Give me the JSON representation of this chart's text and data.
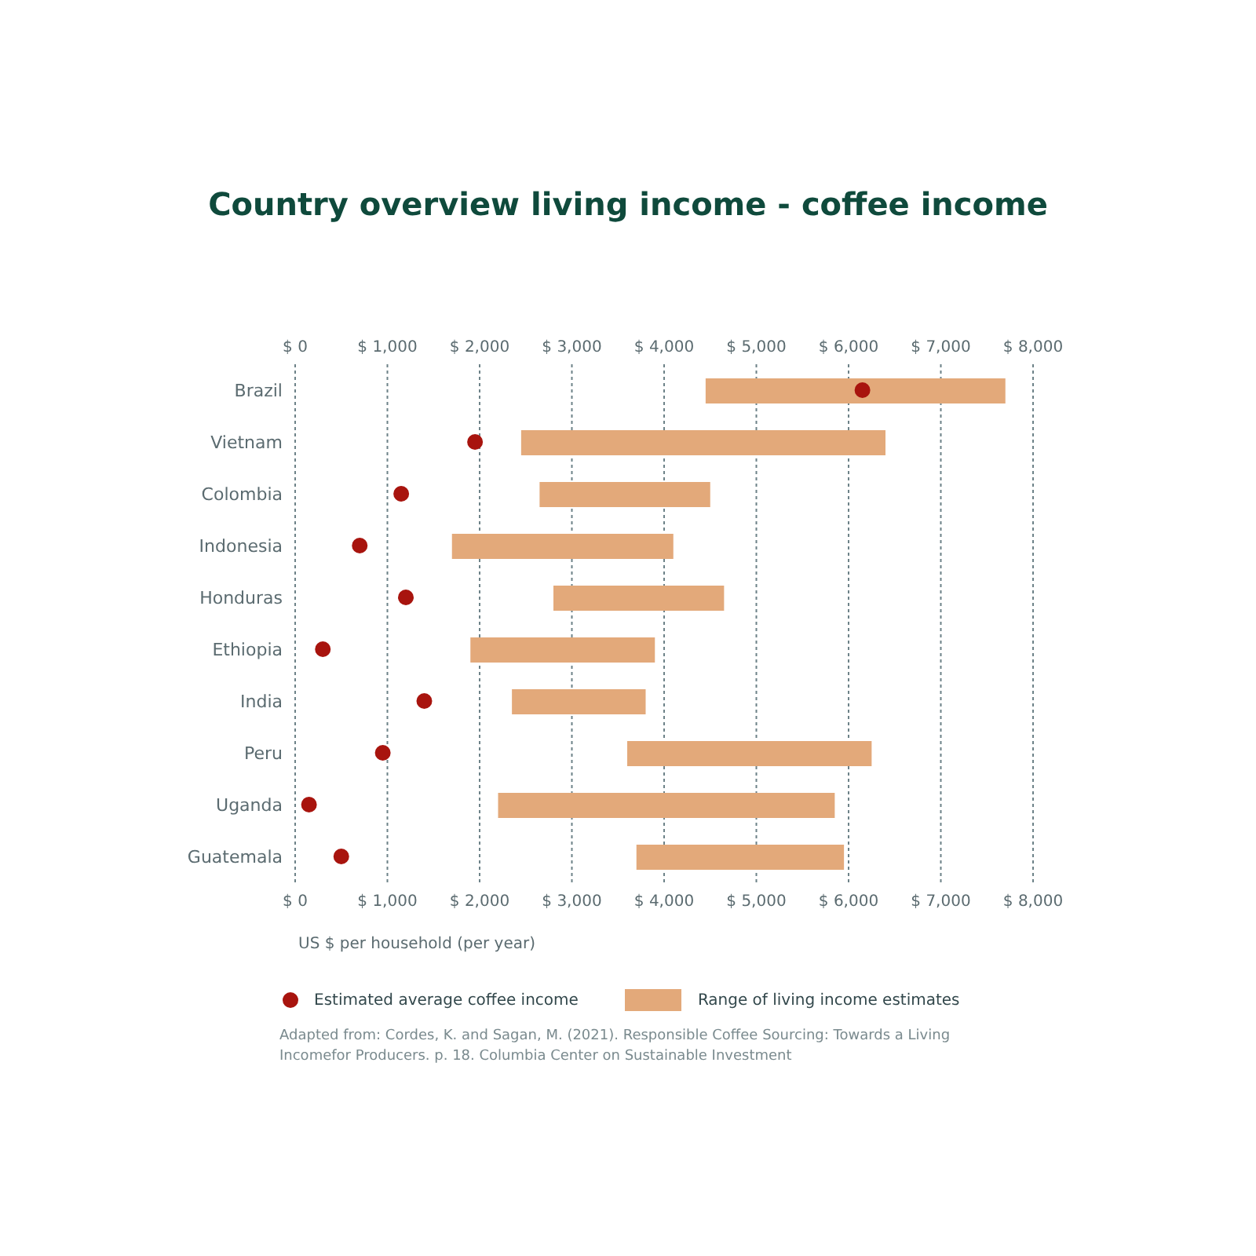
{
  "chart_data": {
    "type": "bar",
    "orientation": "horizontal",
    "title": "Country overview living income - coffee income",
    "xlabel": "US $ per household (per year)",
    "categories": [
      "Brazil",
      "Vietnam",
      "Colombia",
      "Indonesia",
      "Honduras",
      "Ethiopia",
      "India",
      "Peru",
      "Uganda",
      "Guatemala"
    ],
    "series": [
      {
        "type": "scatter",
        "name": "Estimated average coffee income",
        "color": "#a8140e",
        "values": [
          6150,
          1950,
          1150,
          700,
          1200,
          300,
          1400,
          950,
          150,
          500
        ]
      },
      {
        "name": "Range of living income estimates",
        "color": "#e3a97a",
        "base": [
          4450,
          2450,
          2650,
          1700,
          2800,
          1900,
          2350,
          3600,
          2200,
          3700
        ],
        "values": [
          3250,
          3950,
          1850,
          2400,
          1850,
          2000,
          1450,
          2650,
          3650,
          2250
        ]
      }
    ],
    "xlim": [
      0,
      8000
    ],
    "xticks": [
      {
        "value": 0,
        "label": "$ 0"
      },
      {
        "value": 1000,
        "label": "$ 1,000"
      },
      {
        "value": 2000,
        "label": "$ 2,000"
      },
      {
        "value": 3000,
        "label": "$ 3,000"
      },
      {
        "value": 4000,
        "label": "$ 4,000"
      },
      {
        "value": 5000,
        "label": "$ 5,000"
      },
      {
        "value": 6000,
        "label": "$ 6,000"
      },
      {
        "value": 7000,
        "label": "$ 7,000"
      },
      {
        "value": 8000,
        "label": "$ 8,000"
      }
    ],
    "x2lim": [
      0,
      8000
    ],
    "x2ticks": [
      {
        "value": 0,
        "label": "$ 0"
      },
      {
        "value": 1000,
        "label": "$ 1,000"
      },
      {
        "value": 2000,
        "label": "$ 2,000"
      },
      {
        "value": 3000,
        "label": "$ 3,000"
      },
      {
        "value": 4000,
        "label": "$ 4,000"
      },
      {
        "value": 5000,
        "label": "$ 5,000"
      },
      {
        "value": 6000,
        "label": "$ 6,000"
      },
      {
        "value": 7000,
        "label": "$ 7,000"
      },
      {
        "value": 8000,
        "label": "$ 8,000"
      }
    ],
    "grid": "x",
    "legend": "bottom",
    "marker": "circle",
    "annotations": [
      "Adapted from: Cordes, K. and Sagan, M. (2021). Responsible Coffee Sourcing: Towards a Living Incomefor Producers. p. 18. Columbia Center on Sustainable Investment"
    ]
  }
}
